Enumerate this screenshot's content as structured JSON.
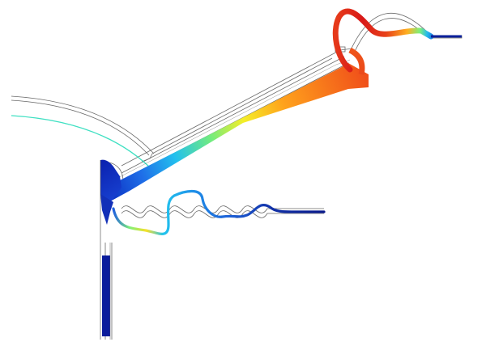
{
  "figure": {
    "kind": "displacement field of a loudspeaker driver cross-section",
    "colormap": [
      "#0a1a8c",
      "#1f5fe0",
      "#22c4ee",
      "#7ef07a",
      "#f7f227",
      "#ff9b1a",
      "#f0561a",
      "#d41818"
    ],
    "background": "#ffffff",
    "outline_color": "#555555",
    "low_color": "#0b1f9a",
    "high_color": "#d41818"
  }
}
